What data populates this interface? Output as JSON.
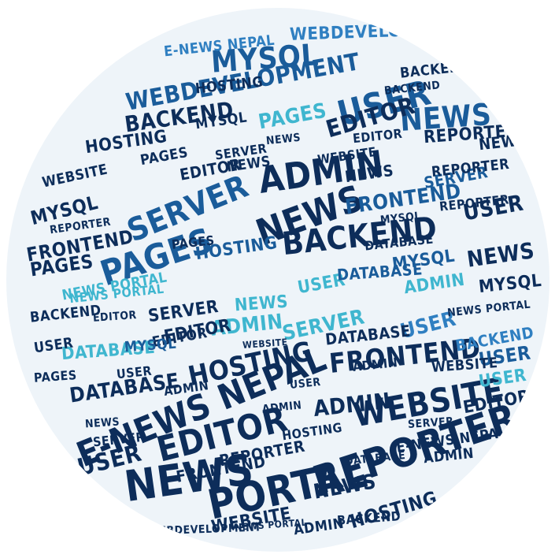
{
  "palette": {
    "navy": "#0d2d5a",
    "blue": "#1a5c9a",
    "mid_blue": "#2f7fc1",
    "teal": "#3fb6cf",
    "light": "#8fd3e6"
  },
  "words": [
    {
      "text": "NEWS",
      "tone": "navy"
    },
    {
      "text": "PORTAL",
      "tone": "navy"
    },
    {
      "text": "REPORTER",
      "tone": "navy"
    },
    {
      "text": "WEBSITE",
      "tone": "navy"
    },
    {
      "text": "E-NEWS NEPAL",
      "tone": "navy"
    },
    {
      "text": "EDITOR",
      "tone": "navy"
    },
    {
      "text": "HOSTING",
      "tone": "navy"
    },
    {
      "text": "FRONTEND",
      "tone": "navy"
    },
    {
      "text": "DATABASE",
      "tone": "navy"
    },
    {
      "text": "BACKEND",
      "tone": "navy"
    },
    {
      "text": "ADMIN",
      "tone": "navy"
    },
    {
      "text": "NEWS",
      "tone": "navy"
    },
    {
      "text": "SERVER",
      "tone": "blue"
    },
    {
      "text": "PAGES",
      "tone": "blue"
    },
    {
      "text": "USER",
      "tone": "blue"
    },
    {
      "text": "NEWS",
      "tone": "blue"
    },
    {
      "text": "EDITOR",
      "tone": "navy"
    },
    {
      "text": "MYSQL",
      "tone": "blue"
    },
    {
      "text": "WEBDEVELOPMENT",
      "tone": "blue"
    },
    {
      "text": "BACKEND",
      "tone": "navy"
    },
    {
      "text": "HOSTING",
      "tone": "navy"
    },
    {
      "text": "WEBDEVELOPMENT",
      "tone": "mid_blue"
    },
    {
      "text": "E-NEWS NEPAL",
      "tone": "mid_blue"
    },
    {
      "text": "REPORTER",
      "tone": "navy"
    },
    {
      "text": "DATABASE",
      "tone": "teal"
    },
    {
      "text": "FRONTEND",
      "tone": "navy"
    },
    {
      "text": "MYSQL",
      "tone": "navy"
    },
    {
      "text": "PAGES",
      "tone": "navy"
    },
    {
      "text": "WEBSITE",
      "tone": "navy"
    },
    {
      "text": "NEWS PORTAL",
      "tone": "teal"
    },
    {
      "text": "ADMIN",
      "tone": "teal"
    },
    {
      "text": "USER",
      "tone": "teal"
    },
    {
      "text": "SERVER",
      "tone": "teal"
    },
    {
      "text": "NEWS",
      "tone": "teal"
    },
    {
      "text": "USER",
      "tone": "mid_blue"
    },
    {
      "text": "EDITOR",
      "tone": "navy"
    },
    {
      "text": "BACKEND",
      "tone": "navy"
    },
    {
      "text": "SERVER",
      "tone": "navy"
    },
    {
      "text": "USER",
      "tone": "navy"
    },
    {
      "text": "ADMIN",
      "tone": "navy"
    },
    {
      "text": "HOSTING",
      "tone": "navy"
    },
    {
      "text": "NEWS",
      "tone": "navy"
    },
    {
      "text": "WEBSITE",
      "tone": "navy"
    },
    {
      "text": "NEWS PORTAL",
      "tone": "navy"
    },
    {
      "text": "ADMIN",
      "tone": "navy"
    },
    {
      "text": "EDITOR",
      "tone": "navy"
    },
    {
      "text": "NEWS",
      "tone": "navy"
    },
    {
      "text": "DATABASE",
      "tone": "navy"
    },
    {
      "text": "MYSQL",
      "tone": "blue"
    },
    {
      "text": "PAGES",
      "tone": "teal"
    },
    {
      "text": "USER",
      "tone": "navy"
    },
    {
      "text": "FRONTEND",
      "tone": "blue"
    },
    {
      "text": "SERVER",
      "tone": "blue"
    },
    {
      "text": "WEBDEVELOPMENT",
      "tone": "navy"
    },
    {
      "text": "BACKEND",
      "tone": "navy"
    },
    {
      "text": "REPORTER",
      "tone": "navy"
    },
    {
      "text": "USER",
      "tone": "blue"
    },
    {
      "text": "MYSQL",
      "tone": "navy"
    },
    {
      "text": "NEWS",
      "tone": "navy"
    },
    {
      "text": "BACKEND",
      "tone": "mid_blue"
    },
    {
      "text": "HOSTING",
      "tone": "blue"
    },
    {
      "text": "ADMIN",
      "tone": "teal"
    },
    {
      "text": "EDITOR",
      "tone": "navy"
    },
    {
      "text": "DATABASE",
      "tone": "blue"
    },
    {
      "text": "E-NEWS NEPAL",
      "tone": "navy"
    },
    {
      "text": "USER",
      "tone": "navy"
    },
    {
      "text": "MYSQL",
      "tone": "blue"
    },
    {
      "text": "PAGES",
      "tone": "navy"
    },
    {
      "text": "NEWS PORTAL",
      "tone": "teal"
    },
    {
      "text": "SERVER",
      "tone": "navy"
    },
    {
      "text": "REPORTER",
      "tone": "navy"
    },
    {
      "text": "FRONTEND",
      "tone": "navy"
    },
    {
      "text": "NEWS",
      "tone": "navy"
    },
    {
      "text": "EDITOR",
      "tone": "navy"
    },
    {
      "text": "USER",
      "tone": "teal"
    },
    {
      "text": "WEBSITE",
      "tone": "navy"
    },
    {
      "text": "ADMIN",
      "tone": "navy"
    },
    {
      "text": "HOSTING",
      "tone": "navy"
    },
    {
      "text": "PAGES",
      "tone": "navy"
    },
    {
      "text": "MYSQL",
      "tone": "navy"
    },
    {
      "text": "BACKEND",
      "tone": "navy"
    },
    {
      "text": "NEWS",
      "tone": "navy"
    },
    {
      "text": "DATABASE",
      "tone": "navy"
    },
    {
      "text": "ADMIN",
      "tone": "navy"
    },
    {
      "text": "USER",
      "tone": "navy"
    },
    {
      "text": "EDITOR",
      "tone": "navy"
    },
    {
      "text": "SERVER",
      "tone": "navy"
    },
    {
      "text": "REPORTER",
      "tone": "navy"
    },
    {
      "text": "PAGES",
      "tone": "navy"
    },
    {
      "text": "HOSTING",
      "tone": "navy"
    },
    {
      "text": "NEWS",
      "tone": "navy"
    },
    {
      "text": "ADMIN",
      "tone": "navy"
    },
    {
      "text": "WEBSITE",
      "tone": "navy"
    },
    {
      "text": "USER",
      "tone": "navy"
    },
    {
      "text": "EDITOR",
      "tone": "navy"
    },
    {
      "text": "MYSQL",
      "tone": "navy"
    },
    {
      "text": "NEWS",
      "tone": "navy"
    },
    {
      "text": "DATABASE",
      "tone": "navy"
    },
    {
      "text": "SERVER",
      "tone": "navy"
    },
    {
      "text": "BACKEND",
      "tone": "navy"
    },
    {
      "text": "ADMIN",
      "tone": "navy"
    },
    {
      "text": "REPORTER",
      "tone": "navy"
    },
    {
      "text": "NEWS PORTAL",
      "tone": "navy"
    },
    {
      "text": "WEBSITE",
      "tone": "navy"
    }
  ]
}
